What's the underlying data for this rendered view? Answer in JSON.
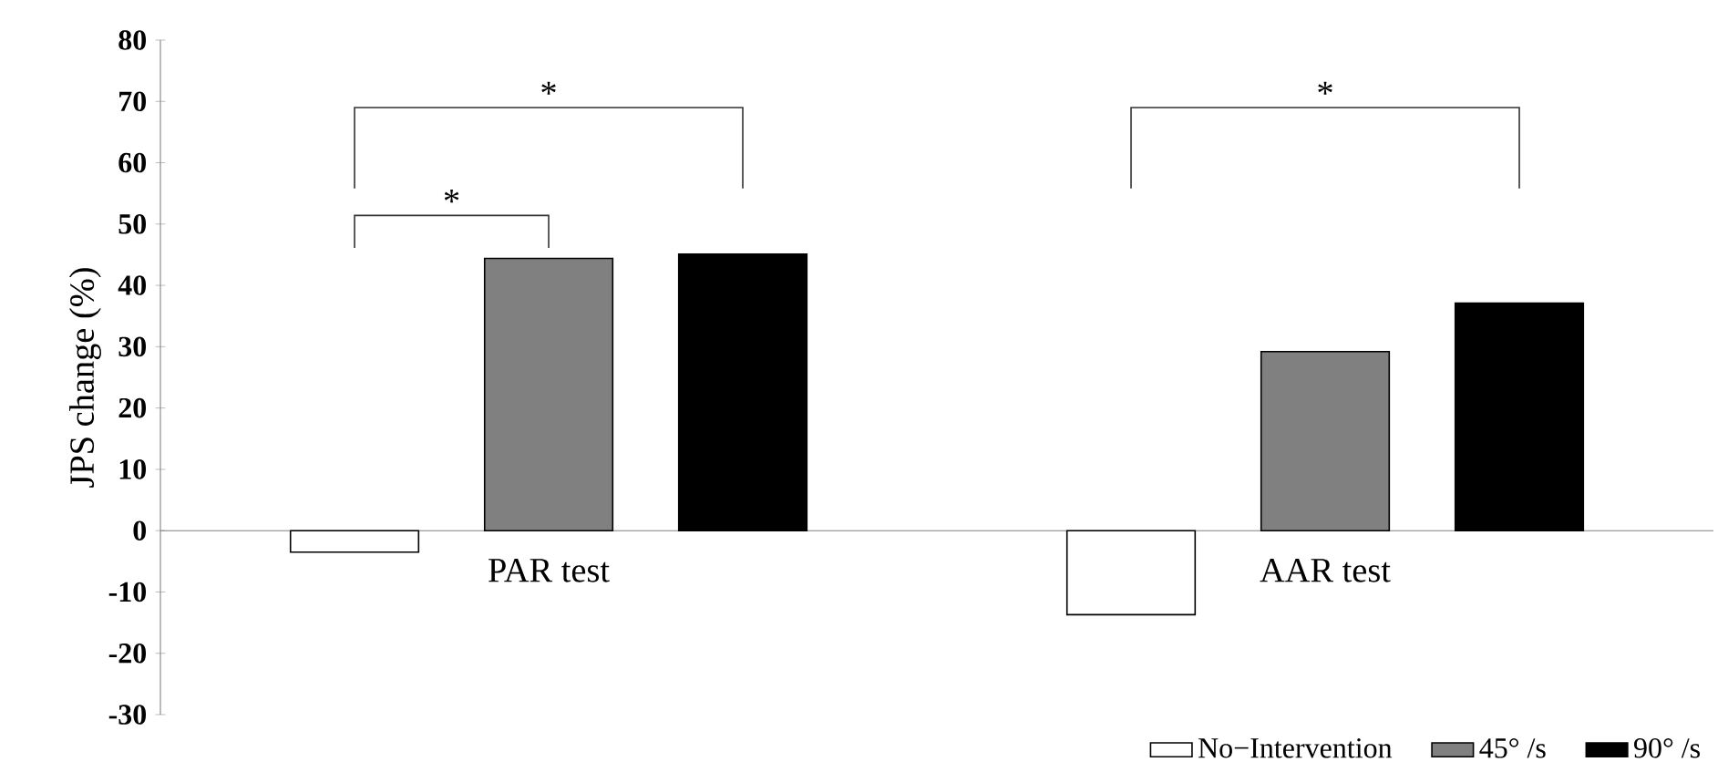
{
  "chart_data": {
    "type": "bar",
    "ylabel": "JPS change (%)",
    "categories": [
      "PAR test",
      "AAR test"
    ],
    "series": [
      {
        "name": "No−Intervention",
        "color": "#ffffff",
        "values": [
          -3.5,
          -13.7
        ]
      },
      {
        "name": "45° /s",
        "color": "#808080",
        "values": [
          44.4,
          29.2
        ]
      },
      {
        "name": "90° /s",
        "color": "#000000",
        "values": [
          45.1,
          37.1
        ]
      }
    ],
    "ylim": [
      -30,
      80
    ],
    "yticks": [
      -30,
      -20,
      -10,
      0,
      10,
      20,
      30,
      40,
      50,
      60,
      70,
      80
    ],
    "grid": false,
    "legend": "bottom right",
    "annotations": [
      "*",
      "*",
      "*"
    ]
  }
}
